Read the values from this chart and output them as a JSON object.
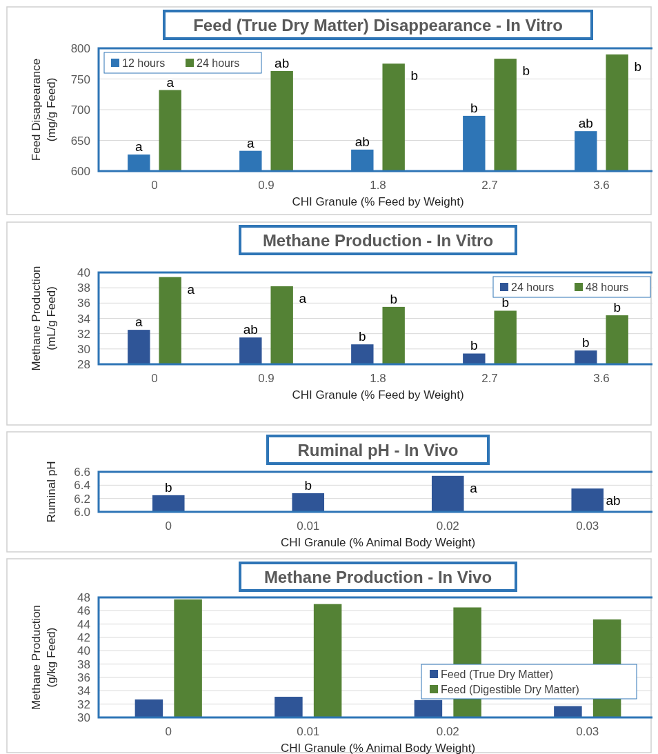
{
  "chart_data": [
    {
      "type": "bar",
      "title": "Feed (True Dry Matter) Disappearance - In Vitro",
      "xlabel": "CHI Granule (% Feed by Weight)",
      "ylabel": "Feed Disapearance\n(mg/g Feed)",
      "categories": [
        "0",
        "0.9",
        "1.8",
        "2.7",
        "3.6"
      ],
      "series": [
        {
          "name": "12 hours",
          "color": "#2e75b6",
          "values": [
            627,
            633,
            635,
            690,
            665
          ],
          "value_labels": [
            "a",
            "a",
            "ab",
            "b",
            "ab"
          ]
        },
        {
          "name": "24 hours",
          "color": "#548235",
          "values": [
            732,
            763,
            775,
            783,
            790
          ],
          "value_labels": [
            "a",
            "ab",
            "b",
            "b",
            "b"
          ]
        }
      ],
      "ylim": [
        600,
        800
      ],
      "yticks": [
        600,
        650,
        700,
        750,
        800
      ],
      "grid": "y",
      "legend": "top left"
    },
    {
      "type": "bar",
      "title": "Methane Production - In Vitro",
      "xlabel": "CHI Granule (% Feed by Weight)",
      "ylabel": "Methane Production\n(mL/g Feed)",
      "categories": [
        "0",
        "0.9",
        "1.8",
        "2.7",
        "3.6"
      ],
      "series": [
        {
          "name": "24 hours",
          "color": "#2f5597",
          "values": [
            32.5,
            31.5,
            30.6,
            29.4,
            29.8
          ],
          "value_labels": [
            "a",
            "ab",
            "b",
            "b",
            "b"
          ]
        },
        {
          "name": "48 hours",
          "color": "#548235",
          "values": [
            39.4,
            38.2,
            35.5,
            35.0,
            34.4
          ],
          "value_labels": [
            "a",
            "a",
            "b",
            "b",
            "b"
          ]
        }
      ],
      "ylim": [
        28,
        40
      ],
      "yticks": [
        28,
        30,
        32,
        34,
        36,
        38,
        40
      ],
      "grid": "y",
      "legend": "top right"
    },
    {
      "type": "bar",
      "title": "Ruminal pH - In Vivo",
      "xlabel": "CHI Granule (% Animal Body Weight)",
      "ylabel": "Ruminal pH",
      "categories": [
        "0",
        "0.01",
        "0.02",
        "0.03"
      ],
      "series": [
        {
          "color": "#2f5597",
          "values": [
            6.25,
            6.28,
            6.54,
            6.35
          ],
          "value_labels": [
            "b",
            "b",
            "a",
            "ab"
          ]
        }
      ],
      "ylim": [
        6.0,
        6.6
      ],
      "yticks": [
        {
          "value": 6.0,
          "label": "6.0"
        },
        {
          "value": 6.2,
          "label": "6.2"
        },
        {
          "value": 6.4,
          "label": "6.4"
        },
        {
          "value": 6.6,
          "label": "6.6"
        }
      ],
      "grid": "y"
    },
    {
      "type": "bar",
      "title": "Methane Production - In Vivo",
      "xlabel": "CHI Granule (% Animal Body Weight)",
      "ylabel": "Methane Production\n(g/kg Feed)",
      "categories": [
        "0",
        "0.01",
        "0.02",
        "0.03"
      ],
      "series": [
        {
          "name": "Feed (True Dry Matter)",
          "color": "#2f5597",
          "values": [
            32.7,
            33.1,
            32.6,
            31.7
          ]
        },
        {
          "name": "Feed (Digestible Dry Matter)",
          "color": "#548235",
          "values": [
            47.7,
            47.0,
            46.5,
            44.7
          ]
        }
      ],
      "ylim": [
        30,
        48
      ],
      "yticks": [
        30,
        32,
        34,
        36,
        38,
        40,
        42,
        44,
        46,
        48
      ],
      "grid": "y",
      "legend": "right"
    }
  ]
}
